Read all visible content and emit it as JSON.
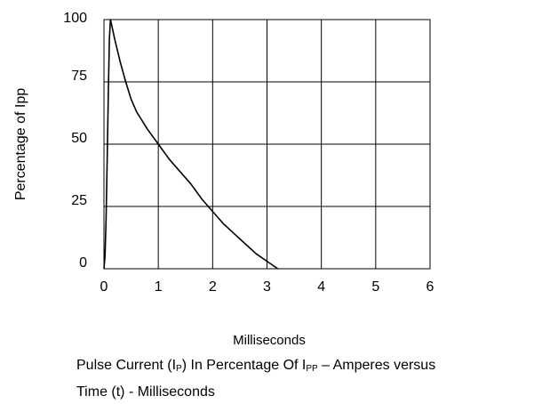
{
  "chart_data": {
    "type": "line",
    "title": "",
    "xlabel": "Milliseconds",
    "ylabel": "Percentage of Ipp",
    "xlim": [
      0,
      6
    ],
    "ylim": [
      0,
      100
    ],
    "x_ticks": [
      0,
      1,
      2,
      3,
      4,
      5,
      6
    ],
    "y_ticks": [
      0,
      25,
      50,
      75,
      100
    ],
    "grid": true,
    "legend": "none",
    "line_color": "#000000",
    "series": [
      {
        "x": [
          0.0,
          0.02,
          0.04,
          0.06,
          0.08,
          0.1,
          0.12,
          0.15,
          0.2,
          0.3,
          0.4,
          0.5,
          0.6,
          0.8,
          1.0,
          1.2,
          1.4,
          1.6,
          1.8,
          2.0,
          2.2,
          2.4,
          2.6,
          2.8,
          3.0,
          3.2
        ],
        "y": [
          0,
          5,
          20,
          45,
          70,
          92,
          100,
          97,
          92,
          83,
          75,
          68,
          63,
          56,
          50,
          44,
          39,
          34,
          28,
          23,
          18,
          14,
          10,
          6,
          3,
          0
        ]
      }
    ]
  },
  "caption": {
    "line1_a": "Pulse Current (I",
    "line1_sub1": "P",
    "line1_b": ") In Percentage Of I",
    "line1_sub2": "PP",
    "line1_c": " – Amperes versus",
    "line2": "Time (t) - Milliseconds"
  }
}
